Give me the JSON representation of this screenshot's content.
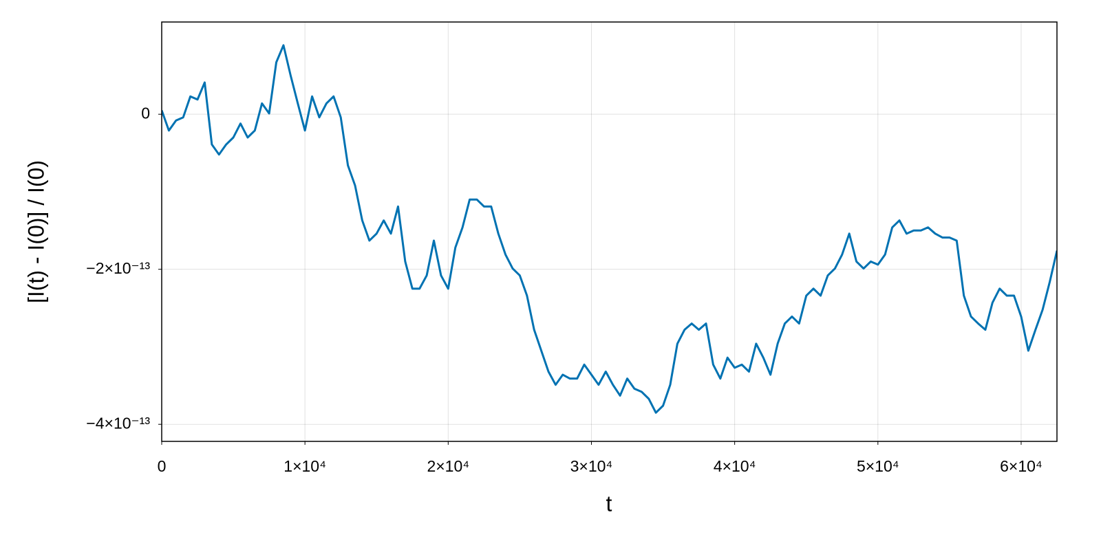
{
  "chart_data": {
    "type": "line",
    "xlabel": "t",
    "ylabel": "[I(t) - I(0)] / I(0)",
    "x": [
      0,
      500,
      1000,
      1500,
      2000,
      2500,
      3000,
      3500,
      4000,
      4500,
      5000,
      5500,
      6000,
      6500,
      7000,
      7500,
      8000,
      8500,
      9000,
      9500,
      10000,
      10500,
      11000,
      11500,
      12000,
      12500,
      13000,
      13500,
      14000,
      14500,
      15000,
      15500,
      16000,
      16500,
      17000,
      17500,
      18000,
      18500,
      19000,
      19500,
      20000,
      20500,
      21000,
      21500,
      22000,
      22500,
      23000,
      23500,
      24000,
      24500,
      25000,
      25500,
      26000,
      26500,
      27000,
      27500,
      28000,
      28500,
      29000,
      29500,
      30000,
      30500,
      31000,
      31500,
      32000,
      32500,
      33000,
      33500,
      34000,
      34500,
      35000,
      35500,
      36000,
      36500,
      37000,
      37500,
      38000,
      38500,
      39000,
      39500,
      40000,
      40500,
      41000,
      41500,
      42000,
      42500,
      43000,
      43500,
      44000,
      44500,
      45000,
      45500,
      46000,
      46500,
      47000,
      47500,
      48000,
      48500,
      49000,
      49500,
      50000,
      50500,
      51000,
      51500,
      52000,
      52500,
      53000,
      53500,
      54000,
      54500,
      55000,
      55500,
      56000,
      56500,
      57000,
      57500,
      58000,
      58500,
      59000,
      59500,
      60000,
      60500,
      61000,
      61500,
      62000,
      62500
    ],
    "series": [
      {
        "color": "#0072b2",
        "values": [
          5e-15,
          -2.1e-14,
          -8e-15,
          -4e-15,
          2.3e-14,
          1.9e-14,
          4.1e-14,
          -3.9e-14,
          -5.2e-14,
          -3.9e-14,
          -3e-14,
          -1.2e-14,
          -3e-14,
          -2.1e-14,
          1.4e-14,
          1e-15,
          6.7e-14,
          8.9e-14,
          5e-14,
          1.4e-14,
          -2.1e-14,
          2.3e-14,
          -4e-15,
          1.4e-14,
          2.3e-14,
          -4e-15,
          -6.6e-14,
          -9.2e-14,
          -1.37e-13,
          -1.63e-13,
          -1.54e-13,
          -1.37e-13,
          -1.54e-13,
          -1.19e-13,
          -1.9e-13,
          -2.25e-13,
          -2.25e-13,
          -2.08e-13,
          -1.63e-13,
          -2.08e-13,
          -2.25e-13,
          -1.72e-13,
          -1.46e-13,
          -1.1e-13,
          -1.1e-13,
          -1.19e-13,
          -1.19e-13,
          -1.54e-13,
          -1.81e-13,
          -1.99e-13,
          -2.08e-13,
          -2.34e-13,
          -2.78e-13,
          -3.05e-13,
          -3.32e-13,
          -3.49e-13,
          -3.36e-13,
          -3.41e-13,
          -3.41e-13,
          -3.23e-13,
          -3.36e-13,
          -3.49e-13,
          -3.32e-13,
          -3.49e-13,
          -3.63e-13,
          -3.41e-13,
          -3.54e-13,
          -3.58e-13,
          -3.67e-13,
          -3.85e-13,
          -3.76e-13,
          -3.49e-13,
          -2.96e-13,
          -2.78e-13,
          -2.7e-13,
          -2.78e-13,
          -2.7e-13,
          -3.23e-13,
          -3.41e-13,
          -3.14e-13,
          -3.27e-13,
          -3.23e-13,
          -3.32e-13,
          -2.96e-13,
          -3.14e-13,
          -3.36e-13,
          -2.96e-13,
          -2.7e-13,
          -2.61e-13,
          -2.7e-13,
          -2.34e-13,
          -2.25e-13,
          -2.34e-13,
          -2.08e-13,
          -1.99e-13,
          -1.81e-13,
          -1.54e-13,
          -1.9e-13,
          -1.99e-13,
          -1.9e-13,
          -1.94e-13,
          -1.81e-13,
          -1.46e-13,
          -1.37e-13,
          -1.54e-13,
          -1.5e-13,
          -1.5e-13,
          -1.46e-13,
          -1.54e-13,
          -1.59e-13,
          -1.59e-13,
          -1.63e-13,
          -2.34e-13,
          -2.61e-13,
          -2.7e-13,
          -2.78e-13,
          -2.43e-13,
          -2.25e-13,
          -2.34e-13,
          -2.34e-13,
          -2.61e-13,
          -3.05e-13,
          -2.78e-13,
          -2.52e-13,
          -2.16e-13,
          -1.76e-13
        ]
      }
    ],
    "xlim": [
      0,
      62500
    ],
    "xticks": [
      0,
      {
        "value": 10000,
        "label": "1×10⁴"
      },
      {
        "value": 20000,
        "label": "2×10⁴"
      },
      {
        "value": 30000,
        "label": "3×10⁴"
      },
      {
        "value": 40000,
        "label": "4×10⁴"
      },
      {
        "value": 50000,
        "label": "5×10⁴"
      },
      {
        "value": 60000,
        "label": "6×10⁴"
      }
    ],
    "ylim": [
      -4.22e-13,
      1.19e-13
    ],
    "yticks": [
      {
        "value": -4e-13,
        "label": "−4×10⁻¹³"
      },
      {
        "value": -2e-13,
        "label": "−2×10⁻¹³"
      },
      0
    ],
    "grid": true
  }
}
